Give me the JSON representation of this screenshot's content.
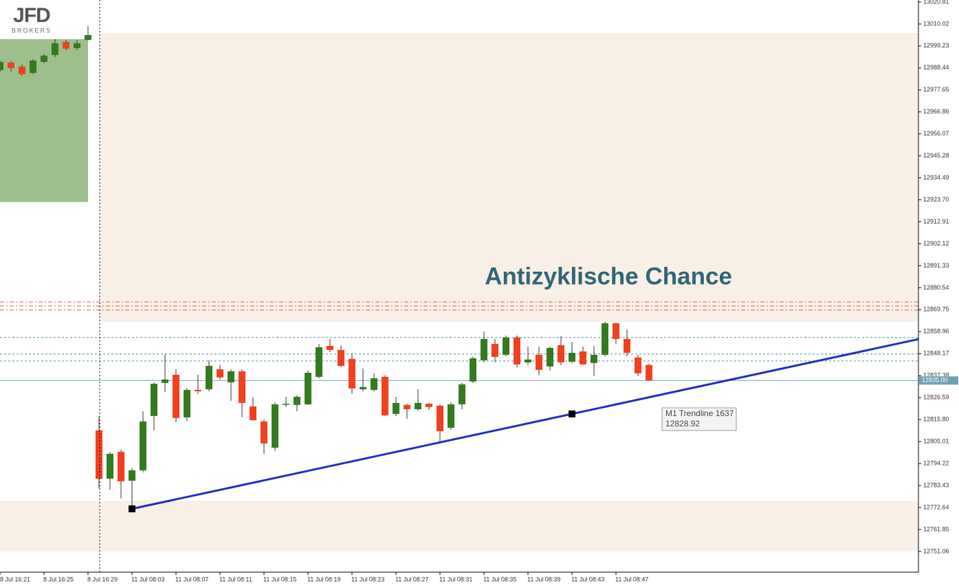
{
  "logo": {
    "name": "JFD",
    "tagline": "BROKERS"
  },
  "chart_data": {
    "type": "candlestick",
    "annotation": "Antizyklische Chance",
    "categories": [
      "8 Jul 16:21",
      null,
      null,
      null,
      "8 Jul 16:25",
      null,
      null,
      null,
      "8 Jul 16:29",
      null,
      null,
      null,
      "11 Jul 08:03",
      null,
      null,
      null,
      "11 Jul 08:07",
      null,
      null,
      null,
      "11 Jul 08:11",
      null,
      null,
      null,
      "11 Jul 08:15",
      null,
      null,
      null,
      "11 Jul 08:19",
      null,
      null,
      null,
      "11 Jul 08:23",
      null,
      null,
      null,
      "11 Jul 08:27",
      null,
      null,
      null,
      "11 Jul 08:31",
      null,
      null,
      null,
      "11 Jul 08:35",
      null,
      null,
      null,
      "11 Jul 08:39",
      null,
      null,
      null,
      "11 Jul 08:43",
      null,
      null,
      null,
      "11 Jul 08:47",
      null,
      null,
      null
    ],
    "open": [
      12987.4,
      12991.1,
      12989.1,
      12986.0,
      12991.4,
      12994.8,
      13001.2,
      12998.2,
      13002.2,
      12810.5,
      12786.8,
      12800.0,
      12785.8,
      12790.9,
      12817.6,
      12833.8,
      12837.8,
      12816.9,
      12830.4,
      12830.7,
      12840.5,
      12834.1,
      12839.5,
      12822.3,
      12814.9,
      12802.0,
      12823.3,
      12823.0,
      12823.3,
      12836.8,
      12852.0,
      12850.0,
      12845.6,
      12830.7,
      12830.4,
      12836.8,
      12818.6,
      12823.0,
      12820.9,
      12823.6,
      12822.6,
      12811.8,
      12823.3,
      12834.5,
      12844.9,
      12853.0,
      12847.6,
      12856.1,
      12843.9,
      12847.6,
      12841.9,
      12852.3,
      12844.2,
      12849.3,
      12843.6,
      12847.6,
      12863.1,
      12855.4,
      12846.3,
      12842.6
    ],
    "high": [
      12992.1,
      12991.8,
      12990.1,
      12992.8,
      12995.2,
      13002.6,
      13002.2,
      13002.2,
      13009.0,
      12817.2,
      12800.0,
      12801.0,
      12791.9,
      12819.9,
      12834.1,
      12848.0,
      12840.5,
      12831.4,
      12837.8,
      12844.9,
      12842.6,
      12840.5,
      12840.5,
      12826.7,
      12815.9,
      12824.3,
      12827.0,
      12827.7,
      12839.9,
      12853.0,
      12855.4,
      12852.3,
      12848.0,
      12840.9,
      12838.5,
      12837.5,
      12827.0,
      12823.6,
      12830.7,
      12824.0,
      12823.3,
      12824.3,
      12833.8,
      12846.6,
      12859.1,
      12855.4,
      12857.1,
      12857.1,
      12851.7,
      12851.7,
      12851.7,
      12856.7,
      12854.0,
      12851.7,
      12852.0,
      12863.8,
      12863.5,
      12860.1,
      12847.6,
      12843.2
    ],
    "low": [
      12986.4,
      12986.7,
      12984.7,
      12985.4,
      12990.8,
      12993.8,
      12997.2,
      12997.2,
      13001.9,
      12782.1,
      12781.4,
      12777.1,
      12772.0,
      12789.9,
      12810.5,
      12829.4,
      12814.5,
      12815.2,
      12828.4,
      12829.7,
      12835.5,
      12825.0,
      12816.9,
      12815.2,
      12799.0,
      12800.4,
      12822.0,
      12819.9,
      12823.0,
      12836.1,
      12849.0,
      12841.5,
      12828.4,
      12829.7,
      12829.7,
      12817.6,
      12817.6,
      12816.2,
      12820.3,
      12820.6,
      12805.1,
      12810.8,
      12820.9,
      12833.8,
      12843.9,
      12843.9,
      12846.9,
      12841.5,
      12842.6,
      12837.5,
      12839.9,
      12842.6,
      12843.6,
      12842.6,
      12837.2,
      12846.9,
      12853.0,
      12846.9,
      12837.2,
      12835.0
    ],
    "close": [
      12991.4,
      12988.4,
      12985.4,
      12992.1,
      12994.5,
      13000.6,
      12997.9,
      13000.6,
      13004.6,
      12786.8,
      12799.0,
      12785.5,
      12790.9,
      12814.9,
      12833.4,
      12835.5,
      12816.6,
      12830.4,
      12829.7,
      12842.2,
      12836.5,
      12839.5,
      12824.0,
      12815.5,
      12804.1,
      12823.3,
      12823.6,
      12827.0,
      12838.8,
      12851.3,
      12850.0,
      12842.2,
      12831.1,
      12831.8,
      12836.1,
      12817.9,
      12824.0,
      12820.9,
      12824.0,
      12822.0,
      12810.1,
      12823.3,
      12833.1,
      12845.9,
      12855.4,
      12846.6,
      12856.1,
      12842.9,
      12845.3,
      12840.2,
      12851.0,
      12843.9,
      12848.6,
      12842.9,
      12847.6,
      12863.1,
      12855.4,
      12848.6,
      12838.5,
      12835.0
    ],
    "up_color": "#357a1f",
    "down_color": "#f2401f",
    "ylim": [
      12740.9,
      13021.8
    ],
    "yticks": [
      13020.81,
      13010.02,
      12999.23,
      12988.44,
      12977.65,
      12966.86,
      12956.07,
      12945.28,
      12934.49,
      {
        "value": 12923.7,
        "label": "12923.70"
      },
      12912.91,
      12902.12,
      12891.33,
      12880.54,
      12869.75,
      12858.96,
      12848.17,
      12837.38,
      12826.59,
      {
        "value": 12815.8,
        "label": "12815.80"
      },
      12805.01,
      12794.22,
      12783.43,
      12772.64,
      12761.85,
      12751.06
    ],
    "current_price": {
      "value": 12835.0,
      "label": "12835.00",
      "color": "#6fa3b3"
    },
    "zones": [
      {
        "from": 12863.8,
        "to": 13005.6,
        "start": 9,
        "color": "#f8efe6"
      },
      {
        "from": 12751.1,
        "to": 12776.0,
        "start": 0,
        "color": "#f8efe6"
      },
      {
        "from": 12922.6,
        "to": 13002.6,
        "start": 0,
        "end": 8,
        "color": "#9cbf8c"
      }
    ],
    "levels": [
      {
        "value": 12873.6,
        "color": "#e0584a",
        "style": "dashdot"
      },
      {
        "value": 12871.6,
        "color": "#e0584a",
        "style": "dashdot"
      },
      {
        "value": 12869.6,
        "color": "#e0584a",
        "style": "dashdot"
      },
      {
        "value": 12856.1,
        "color": "#4d8fa3",
        "style": "dash"
      },
      {
        "value": 12848.0,
        "color": "#4d8fa3",
        "style": "dash"
      },
      {
        "value": 12844.6,
        "color": "#4d8fa3",
        "style": "dash"
      }
    ],
    "trendline": {
      "name": "M1 Trendline 1637",
      "value_label": "12828.92",
      "color": "#1f2fbf",
      "points": [
        {
          "x": 12,
          "y": 12772.0
        },
        {
          "x": 52,
          "y": 12818.6
        }
      ]
    }
  }
}
